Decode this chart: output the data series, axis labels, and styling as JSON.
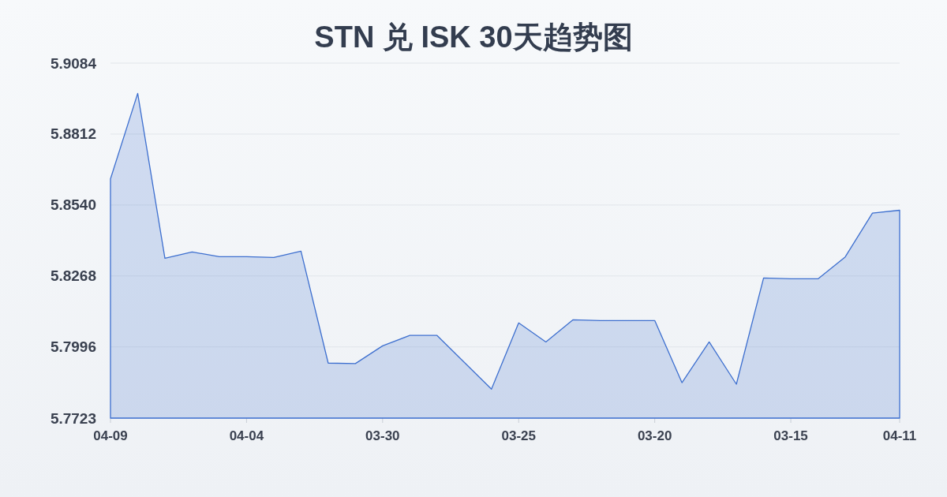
{
  "chart_data": {
    "type": "area",
    "title": "STN 兑 ISK 30天趋势图",
    "categories": [
      "04-09",
      null,
      null,
      null,
      null,
      "04-04",
      null,
      null,
      null,
      null,
      "03-30",
      null,
      null,
      null,
      null,
      "03-25",
      null,
      null,
      null,
      null,
      "03-20",
      null,
      null,
      null,
      null,
      "03-15",
      null,
      null,
      null,
      "04-11"
    ],
    "values": [
      5.864,
      5.8968,
      5.8336,
      5.836,
      5.8342,
      5.8342,
      5.8339,
      5.8363,
      5.7934,
      5.7932,
      5.8,
      5.804,
      5.804,
      5.7937,
      5.7834,
      5.8088,
      5.8015,
      5.81,
      5.8097,
      5.8097,
      5.8097,
      5.7859,
      5.8015,
      5.7853,
      5.826,
      5.8257,
      5.8257,
      5.8341,
      5.8509,
      5.852
    ],
    "color": "#3d6fcf",
    "ylim": [
      5.7723,
      5.9084
    ],
    "yticks": [
      5.7723,
      5.7996,
      5.8268,
      {
        "value": 5.854,
        "label": "5.8540"
      },
      5.8812,
      5.9084
    ],
    "grid": "y"
  }
}
